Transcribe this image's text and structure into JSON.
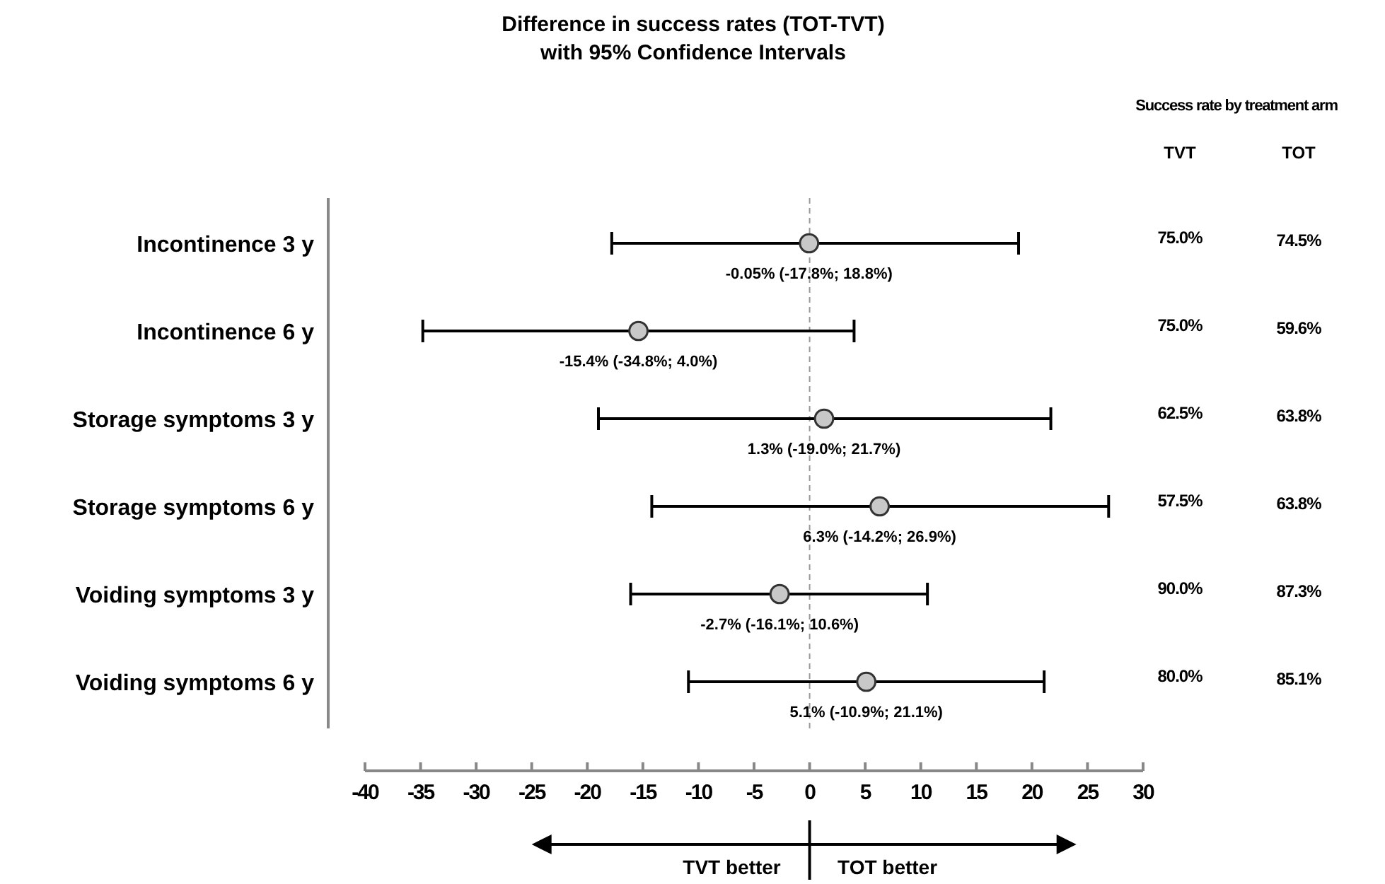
{
  "chart_data": {
    "type": "scatter",
    "orientation": "horizontal",
    "title": "Difference in success rates (TOT-TVT)\nwith 95% Confidence Intervals",
    "categories": [
      "Incontinence 3 y",
      "Incontinence 6 y",
      "Storage symptoms 3 y",
      "Storage symptoms 6 y",
      "Voiding symptoms 3 y",
      "Voiding symptoms 6 y"
    ],
    "values": [
      -0.05,
      -15.4,
      1.3,
      6.3,
      -2.7,
      5.1
    ],
    "errors": [
      [
        -17.8,
        18.8
      ],
      [
        -34.8,
        4.0
      ],
      [
        -19.0,
        21.7
      ],
      [
        -14.2,
        26.9
      ],
      [
        -16.1,
        10.6
      ],
      [
        -10.9,
        21.1
      ]
    ],
    "value_labels": [
      "-0.05% (-17.8%; 18.8%)",
      "-15.4% (-34.8%; 4.0%)",
      "1.3% (-19.0%; 21.7%)",
      "6.3% (-14.2%; 26.9%)",
      "-2.7% (-16.1%; 10.6%)",
      "5.1% (-10.9%; 21.1%)"
    ],
    "color": "#c8c8c8",
    "marker": "circle",
    "xlim": [
      -40,
      30
    ],
    "xticks": [
      -40,
      -35,
      -30,
      -25,
      -20,
      -15,
      -10,
      -5,
      0,
      5,
      10,
      15,
      20,
      25,
      30
    ],
    "ref_lines": [
      {
        "axis": "x",
        "value": 0,
        "line_style": "dashed",
        "color": "#999999"
      }
    ],
    "grid": false,
    "annotations": [
      "Success rate by treatment arm",
      "TVT",
      "TOT",
      "75.0%",
      "74.5%",
      "75.0%",
      "59.6%",
      "62.5%",
      "63.8%",
      "57.5%",
      "63.8%",
      "90.0%",
      "87.3%",
      "80.0%",
      "85.1%",
      "TVT better",
      "TOT better"
    ]
  }
}
